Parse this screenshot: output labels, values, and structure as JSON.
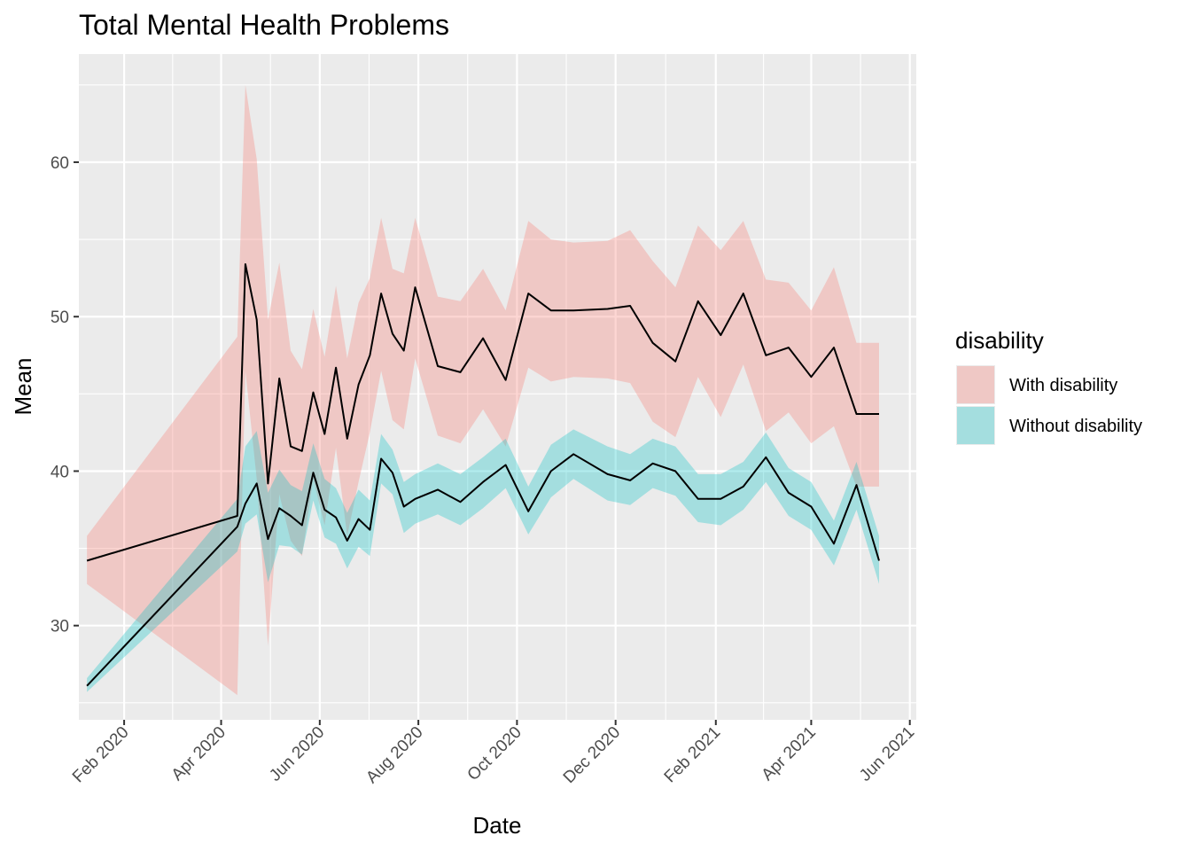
{
  "chart_data": {
    "type": "area",
    "title": "Total Mental Health Problems",
    "xlabel": "Date",
    "ylabel": "Mean",
    "xlim": [
      "2020-01-04",
      "2021-06-05"
    ],
    "ylim": [
      23.9,
      67.0
    ],
    "x_ticks": [
      "2020-02-01",
      "2020-04-01",
      "2020-06-01",
      "2020-08-01",
      "2020-10-01",
      "2020-12-01",
      "2021-02-01",
      "2021-04-01",
      "2021-06-01"
    ],
    "x_tick_labels": [
      "Feb 2020",
      "Apr 2020",
      "Jun 2020",
      "Aug 2020",
      "Oct 2020",
      "Dec 2020",
      "Feb 2021",
      "Apr 2021",
      "Jun 2021"
    ],
    "y_ticks": [
      30,
      40,
      50,
      60
    ],
    "y_tick_labels": [
      "30",
      "40",
      "50",
      "60"
    ],
    "grid": true,
    "legend": {
      "title": "disability",
      "position": "right",
      "entries": [
        "With disability",
        "Without disability"
      ]
    },
    "series": [
      {
        "name": "With disability",
        "fill_color": "#f8766d",
        "x": [
          "2020-01-09",
          "2020-04-11",
          "2020-04-16",
          "2020-04-23",
          "2020-04-30",
          "2020-05-07",
          "2020-05-14",
          "2020-05-21",
          "2020-05-28",
          "2020-06-04",
          "2020-06-11",
          "2020-06-18",
          "2020-06-25",
          "2020-07-02",
          "2020-07-09",
          "2020-07-16",
          "2020-07-23",
          "2020-07-30",
          "2020-08-13",
          "2020-08-27",
          "2020-09-10",
          "2020-09-24",
          "2020-10-08",
          "2020-10-22",
          "2020-11-05",
          "2020-11-26",
          "2020-12-10",
          "2020-12-24",
          "2021-01-07",
          "2021-01-21",
          "2021-02-04",
          "2021-02-18",
          "2021-03-04",
          "2021-03-18",
          "2021-04-01",
          "2021-04-15",
          "2021-04-29",
          "2021-05-13"
        ],
        "mean": [
          34.2,
          37.1,
          53.4,
          49.8,
          39.2,
          46.0,
          41.6,
          41.3,
          45.1,
          42.4,
          46.7,
          42.1,
          45.6,
          47.5,
          51.5,
          48.9,
          47.8,
          51.9,
          46.8,
          46.4,
          48.6,
          45.9,
          51.5,
          50.4,
          50.4,
          50.5,
          50.7,
          48.3,
          47.1,
          51.0,
          48.8,
          51.5,
          47.5,
          48.0,
          46.1,
          48.0,
          43.7,
          43.7
        ],
        "lower": [
          32.7,
          25.5,
          46.5,
          39.5,
          28.7,
          38.5,
          35.5,
          34.5,
          39.5,
          36.5,
          41.5,
          35.8,
          39.3,
          42.5,
          46.5,
          43.3,
          42.7,
          47.3,
          42.3,
          41.8,
          44.0,
          41.6,
          46.7,
          45.8,
          46.1,
          46.0,
          45.7,
          43.2,
          42.2,
          46.1,
          43.5,
          46.9,
          42.6,
          43.8,
          41.8,
          42.9,
          39.0,
          39.0
        ],
        "upper": [
          35.8,
          48.7,
          65.0,
          60.2,
          49.8,
          53.5,
          47.8,
          46.6,
          50.5,
          47.4,
          52.0,
          47.3,
          50.9,
          52.5,
          56.4,
          53.1,
          52.8,
          56.4,
          51.3,
          51.0,
          53.1,
          50.4,
          56.2,
          55.0,
          54.8,
          54.9,
          55.6,
          53.6,
          51.9,
          55.9,
          54.3,
          56.2,
          52.4,
          52.2,
          50.4,
          53.2,
          48.3,
          48.3
        ]
      },
      {
        "name": "Without disability",
        "fill_color": "#00bfc4",
        "x": [
          "2020-01-09",
          "2020-04-11",
          "2020-04-16",
          "2020-04-23",
          "2020-04-30",
          "2020-05-07",
          "2020-05-14",
          "2020-05-21",
          "2020-05-28",
          "2020-06-04",
          "2020-06-11",
          "2020-06-18",
          "2020-06-25",
          "2020-07-02",
          "2020-07-09",
          "2020-07-16",
          "2020-07-23",
          "2020-07-30",
          "2020-08-13",
          "2020-08-27",
          "2020-09-10",
          "2020-09-24",
          "2020-10-08",
          "2020-10-22",
          "2020-11-05",
          "2020-11-26",
          "2020-12-10",
          "2020-12-24",
          "2021-01-07",
          "2021-01-21",
          "2021-02-04",
          "2021-02-18",
          "2021-03-04",
          "2021-03-18",
          "2021-04-01",
          "2021-04-15",
          "2021-04-29",
          "2021-05-13"
        ],
        "mean": [
          26.1,
          36.4,
          37.9,
          39.2,
          35.6,
          37.6,
          37.1,
          36.5,
          39.9,
          37.5,
          37.0,
          35.5,
          36.9,
          36.2,
          40.8,
          39.9,
          37.7,
          38.2,
          38.8,
          38.0,
          39.3,
          40.4,
          37.4,
          40.0,
          41.1,
          39.8,
          39.4,
          40.5,
          40.0,
          38.2,
          38.2,
          39.0,
          40.9,
          38.6,
          37.7,
          35.3,
          39.1,
          34.2
        ],
        "lower": [
          25.7,
          34.8,
          36.6,
          37.2,
          32.8,
          35.2,
          35.1,
          34.6,
          38.1,
          35.7,
          35.3,
          33.7,
          35.1,
          34.5,
          39.2,
          38.5,
          36.0,
          36.6,
          37.2,
          36.5,
          37.6,
          38.9,
          35.9,
          38.3,
          39.5,
          38.1,
          37.8,
          38.9,
          38.4,
          36.7,
          36.5,
          37.5,
          39.3,
          37.1,
          36.2,
          33.9,
          37.5,
          32.7
        ],
        "upper": [
          26.6,
          38.2,
          41.6,
          42.6,
          38.6,
          40.1,
          39.1,
          38.7,
          41.8,
          39.5,
          38.9,
          37.3,
          38.8,
          38.1,
          42.4,
          41.4,
          39.3,
          39.8,
          40.5,
          39.8,
          40.9,
          42.1,
          39.0,
          41.7,
          42.7,
          41.6,
          41.1,
          42.1,
          41.6,
          39.8,
          39.8,
          40.6,
          42.5,
          40.2,
          39.3,
          36.8,
          40.6,
          35.8
        ]
      }
    ]
  }
}
